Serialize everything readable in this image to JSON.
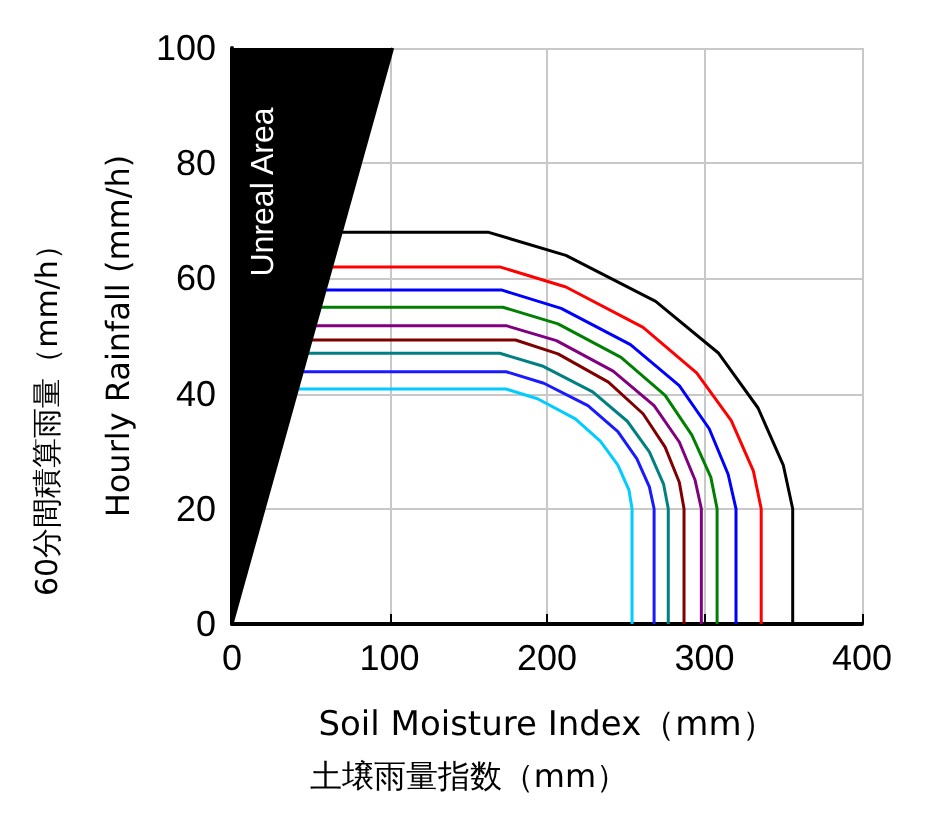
{
  "chart_data": {
    "type": "line",
    "xlabel": "Soil Moisture Index（mm）",
    "ylabel": "Hourly Rainfall (mm/h)",
    "annotations": [
      "土壌雨量指数（mm）",
      "60分間積算雨量（mm/h）"
    ],
    "xlim": [
      0,
      400
    ],
    "ylim": [
      0,
      100
    ],
    "xticks": [
      0,
      100,
      200,
      300,
      400
    ],
    "yticks": [
      0,
      20,
      40,
      60,
      80,
      100
    ],
    "grid": true,
    "legend": false,
    "marker": "none",
    "line_style": "solid",
    "series": [
      {
        "type": "area",
        "name": "Unreal Area",
        "color": "#000000",
        "x": [
          0,
          102
        ],
        "values": [
          0,
          100
        ]
      },
      {
        "color": "#000000",
        "x": [
          69,
          163,
          212,
          269,
          309,
          334,
          350,
          356,
          356
        ],
        "values": [
          68,
          68,
          64,
          56,
          47,
          37.5,
          27.6,
          20,
          0
        ]
      },
      {
        "color": "#ff0000",
        "x": [
          63,
          170,
          212,
          261,
          295,
          317,
          331,
          336,
          336
        ],
        "values": [
          62,
          62,
          58.5,
          51.5,
          43.6,
          35.3,
          26.6,
          20,
          0
        ]
      },
      {
        "color": "#0000ff",
        "x": [
          59,
          171,
          209,
          253,
          284,
          303,
          315,
          320,
          320
        ],
        "values": [
          58,
          58,
          54.8,
          48.5,
          41.4,
          33.9,
          26,
          20,
          0
        ]
      },
      {
        "color": "#008000",
        "x": [
          56,
          172,
          207,
          247,
          275,
          292,
          304,
          308,
          308
        ],
        "values": [
          55,
          55,
          52.1,
          46.3,
          39.7,
          32.8,
          25.5,
          20,
          0
        ]
      },
      {
        "color": "#800080",
        "x": [
          53,
          174,
          206,
          242,
          268,
          284,
          294,
          298,
          298
        ],
        "values": [
          51.8,
          51.8,
          49.2,
          43.9,
          37.9,
          31.6,
          25,
          20,
          0
        ]
      },
      {
        "color": "#800000",
        "x": [
          50,
          180,
          207,
          239,
          261,
          275,
          284,
          287,
          287
        ],
        "values": [
          49.3,
          49.3,
          46.9,
          42,
          36.5,
          30.7,
          24.6,
          20,
          0
        ]
      },
      {
        "color": "#008080",
        "x": [
          48,
          170,
          197,
          229,
          251,
          265,
          274,
          277,
          277
        ],
        "values": [
          47,
          47,
          44.8,
          40.3,
          35.2,
          29.9,
          24.3,
          20,
          0
        ]
      },
      {
        "color": "#1a1aff",
        "x": [
          45,
          174,
          198,
          226,
          245,
          257,
          265,
          268,
          268
        ],
        "values": [
          43.8,
          43.8,
          41.8,
          37.9,
          33.4,
          28.7,
          23.8,
          20,
          0
        ]
      },
      {
        "color": "#00ccff",
        "x": [
          42,
          174,
          194,
          218,
          234,
          245,
          252,
          254,
          254
        ],
        "values": [
          40.8,
          40.8,
          39.1,
          35.6,
          31.7,
          27.6,
          23.3,
          20,
          0
        ]
      }
    ]
  }
}
